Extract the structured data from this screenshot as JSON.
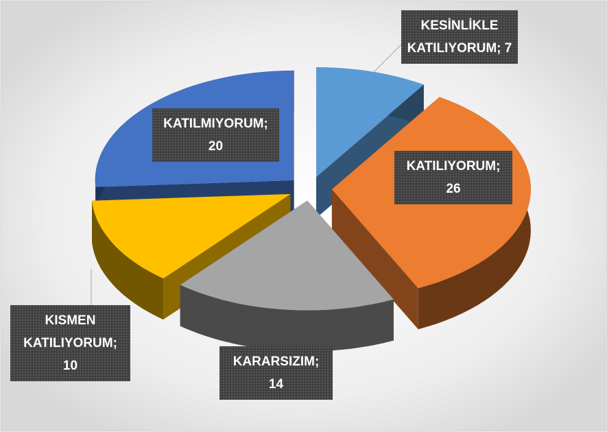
{
  "chart_data": {
    "type": "pie",
    "values": [
      7,
      26,
      14,
      10,
      20
    ],
    "value_labels": [
      "KESİNLİKLE KATILIYORUM; 7",
      "KATILIYORUM; 26",
      "KARARSIZIM; 14",
      "KISMEN KATILIYORUM; 10",
      "KATILMIYORUM; 20"
    ],
    "colors": [
      "#5b9bd5",
      "#ed7d31",
      "#a5a5a5",
      "#ffc000",
      "#4472c4"
    ]
  }
}
